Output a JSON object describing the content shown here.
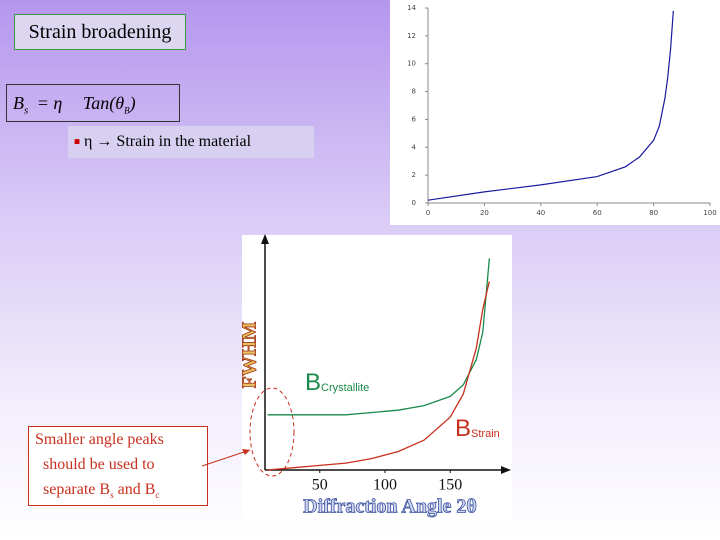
{
  "title": "Strain broadening",
  "equation": {
    "lhs": "B",
    "lhs_sub": "s",
    "mid": "= η",
    "rhs": "Tan(θ",
    "rhs_sub": "B",
    "close": ")"
  },
  "bullet": "η → Strain in the material",
  "callout": {
    "line1": "Smaller angle peaks",
    "line2": "should be used to",
    "line3": [
      "separate B",
      "s",
      " and B",
      "c"
    ]
  },
  "chart_data": [
    {
      "type": "line",
      "x": [
        0,
        20,
        40,
        60,
        70,
        75,
        80,
        82,
        84,
        85,
        86,
        87
      ],
      "xlim": [
        0,
        100
      ],
      "ylim": [
        0,
        14
      ],
      "xticks": [
        0,
        20,
        40,
        60,
        80,
        100
      ],
      "yticks": [
        0,
        2,
        4,
        6,
        8,
        10,
        12,
        14
      ],
      "series": [
        {
          "color": "#1a1aa0",
          "values": [
            0.2,
            0.8,
            1.3,
            1.9,
            2.6,
            3.3,
            4.5,
            5.5,
            7.5,
            9,
            11,
            13.8
          ]
        }
      ]
    },
    {
      "type": "line",
      "x": [
        10,
        30,
        50,
        70,
        90,
        110,
        130,
        150,
        160,
        170,
        175,
        180
      ],
      "xlim": [
        8,
        192
      ],
      "ylim": [
        0,
        100
      ],
      "xticks": [
        50,
        100,
        150
      ],
      "xlabel": "Diffraction Angle 2θ",
      "ylabel": "FWHM",
      "series": [
        {
          "label": "B",
          "label_sub": "Crystallite",
          "color": "#1a8a4a",
          "values": [
            24,
            24,
            24,
            24,
            25,
            26,
            28,
            32,
            37,
            48,
            60,
            92
          ]
        },
        {
          "label": "B",
          "label_sub": "Strain",
          "color": "#c8301e",
          "values": [
            0,
            1,
            2,
            3,
            5,
            8,
            13,
            23,
            33,
            53,
            70,
            82
          ]
        }
      ]
    }
  ]
}
